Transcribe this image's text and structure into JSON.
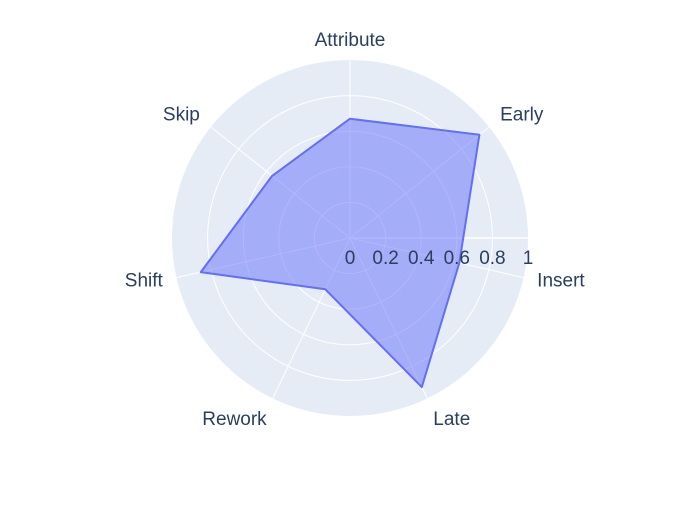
{
  "chart_data": {
    "type": "radar",
    "categories": [
      "Attribute",
      "Early",
      "Insert",
      "Late",
      "Rework",
      "Shift",
      "Skip"
    ],
    "values": [
      0.67,
      0.93,
      0.63,
      0.93,
      0.32,
      0.86,
      0.56
    ],
    "radial_range": [
      0,
      1
    ],
    "radial_ticks": [
      "0",
      "0.2",
      "0.4",
      "0.6",
      "0.8",
      "1"
    ],
    "grid": true,
    "colors": {
      "background": "#e5ecf6",
      "grid": "#ffffff",
      "fill": "#636efa",
      "line": "#636efa",
      "text": "#2a3f5f"
    }
  }
}
